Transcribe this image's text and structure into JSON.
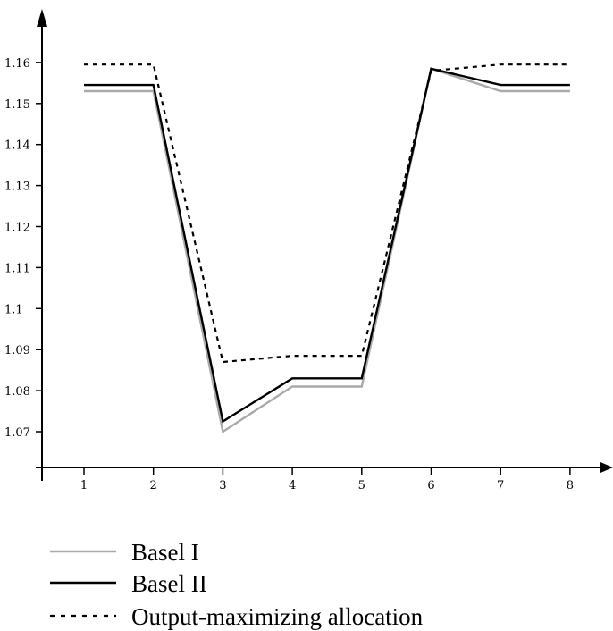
{
  "chart_data": {
    "type": "line",
    "title": "",
    "xlabel": "",
    "ylabel": "",
    "x": [
      1,
      2,
      3,
      4,
      5,
      6,
      7,
      8
    ],
    "xticks": [
      "1",
      "2",
      "3",
      "4",
      "5",
      "6",
      "7",
      "8"
    ],
    "yticks": [
      "1.07",
      "1.08",
      "1.09",
      "1.1",
      "1.11",
      "1.12",
      "1.13",
      "1.14",
      "1.15",
      "1.16"
    ],
    "ylim": [
      1.06,
      1.17
    ],
    "grid": false,
    "legend_position": "bottom",
    "series": [
      {
        "name": "Basel I",
        "color": "#aaaaaa",
        "style": "solid",
        "values": [
          1.153,
          1.153,
          1.07,
          1.081,
          1.081,
          1.1585,
          1.153,
          1.153
        ]
      },
      {
        "name": "Basel II",
        "color": "#000000",
        "style": "solid",
        "values": [
          1.1545,
          1.1545,
          1.0725,
          1.083,
          1.083,
          1.1585,
          1.1545,
          1.1545
        ]
      },
      {
        "name": "Output-maximizing allocation",
        "color": "#000000",
        "style": "dotted",
        "values": [
          1.1595,
          1.1595,
          1.087,
          1.0885,
          1.0885,
          1.158,
          1.1595,
          1.1595
        ]
      }
    ]
  }
}
